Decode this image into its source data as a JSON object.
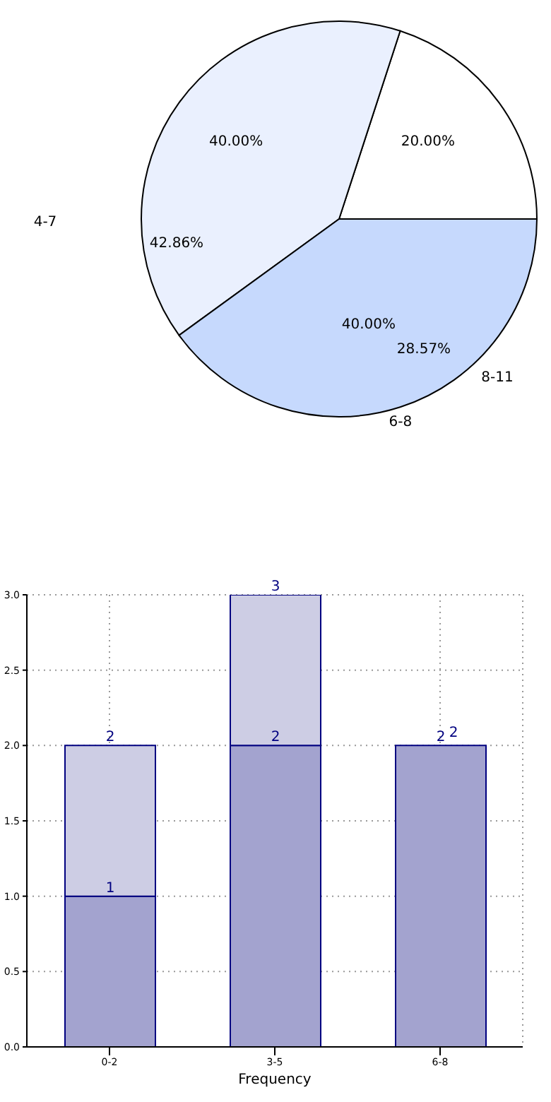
{
  "chart_data": [
    {
      "type": "pie",
      "categories": [
        null,
        null,
        "6-8"
      ],
      "values": [
        20,
        40,
        40
      ],
      "colors": [
        "#ffffff",
        "#eaf0fe",
        "#c6d9fd"
      ],
      "value_labels": [
        "20.00%",
        "40.00%",
        "40.00%"
      ],
      "annotations": [
        "4-7",
        "42.86%",
        "28.57%",
        "8-11"
      ]
    },
    {
      "type": "bar",
      "categories": [
        "0-2",
        "3-5",
        "6-8"
      ],
      "series": [
        {
          "color": "#a3a3cf",
          "values": [
            1,
            2,
            2
          ],
          "value_labels": [
            "1",
            "2",
            "2"
          ]
        },
        {
          "color": "#cdcde4",
          "values": [
            1,
            1,
            0
          ]
        }
      ],
      "stacked": true,
      "totals": [
        "2",
        "3",
        "2"
      ],
      "xlabel": "Frequency",
      "ylim": [
        0,
        3
      ],
      "yticks": [
        {
          "value": 0,
          "label": "0.0"
        },
        {
          "value": 0.5,
          "label": "0.5"
        },
        {
          "value": 1,
          "label": "1.0"
        },
        {
          "value": 1.5,
          "label": "1.5"
        },
        {
          "value": 2,
          "label": "2.0"
        },
        {
          "value": 2.5,
          "label": "2.5"
        },
        {
          "value": 3,
          "label": "3.0"
        }
      ],
      "grid": true
    }
  ]
}
